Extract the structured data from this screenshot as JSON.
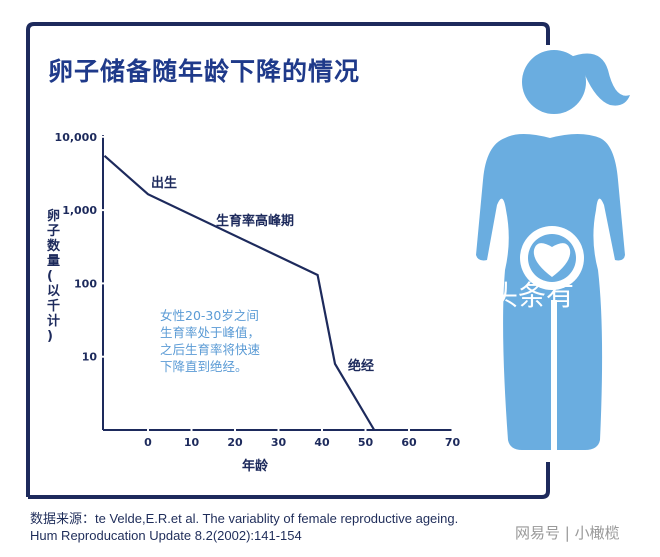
{
  "title": "卵子储备随年龄下降的情况",
  "source_line1": "数据来源：te Velde,E.R.et al. The variablity of female reproductive ageing.",
  "source_line2": "Hum Reproducation Update 8.2(2002):141-154",
  "watermark": "网易号 | 小橄榄",
  "overlay_watermark": "头条有",
  "colors": {
    "navy": "#1d2a5c",
    "figure": "#6aade0",
    "note": "#5b9bd5",
    "title": "#1f3a8a"
  },
  "chart_data": {
    "type": "line",
    "xlabel": "年龄",
    "ylabel": "卵子数量(以千计)",
    "y_scale": "log",
    "ylim": [
      1,
      10000
    ],
    "xlim": [
      -10,
      70
    ],
    "x_ticks": [
      "0",
      "10",
      "20",
      "30",
      "40",
      "50",
      "60",
      "70"
    ],
    "y_ticks": [
      "10,000",
      "1,000",
      "100",
      "10"
    ],
    "grid": false,
    "series": [
      {
        "x": [
          -10,
          0,
          39,
          43,
          52
        ],
        "y": [
          5500,
          1650,
          130,
          8,
          1
        ]
      }
    ],
    "annotations": [
      {
        "text": "出生"
      },
      {
        "text": "生育率高峰期"
      },
      {
        "text": "绝经"
      },
      {
        "text": "女性20-30岁之间生育率处于峰值，之后生育率将快速下降直到绝经。",
        "lines": [
          "女性20-30岁之间",
          "生育率处于峰值，",
          "之后生育率将快速",
          "下降直到绝经。"
        ]
      }
    ]
  }
}
